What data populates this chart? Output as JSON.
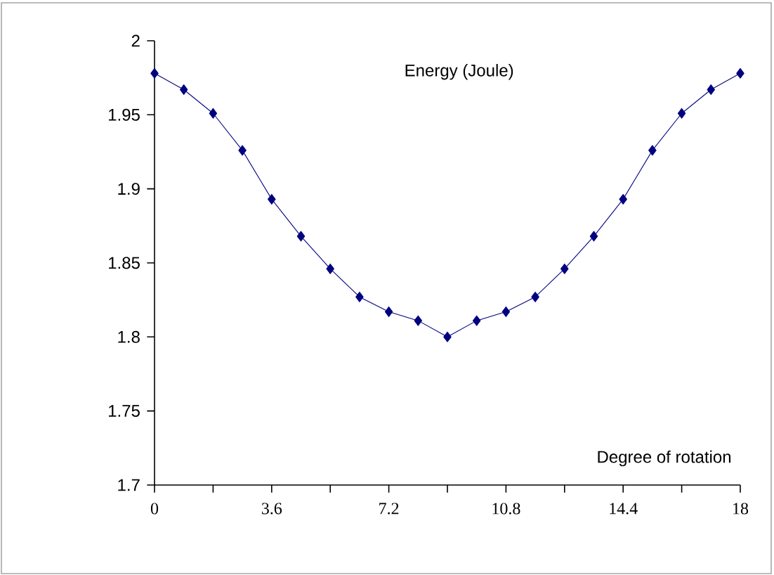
{
  "chart_data": {
    "type": "line",
    "title": "Energy (Joule)",
    "xlabel": "Degree of rotation",
    "x": [
      0,
      0.9,
      1.8,
      2.7,
      3.6,
      4.5,
      5.4,
      6.3,
      7.2,
      8.1,
      9,
      9.9,
      10.8,
      11.7,
      12.6,
      13.5,
      14.4,
      15.3,
      16.2,
      17.1,
      18
    ],
    "series": [
      {
        "color": "#000080",
        "values": [
          1.978,
          1.967,
          1.951,
          1.926,
          1.893,
          1.868,
          1.846,
          1.827,
          1.817,
          1.811,
          1.8,
          1.811,
          1.817,
          1.827,
          1.846,
          1.868,
          1.893,
          1.926,
          1.951,
          1.967,
          1.978
        ]
      }
    ],
    "xlim": [
      0,
      18
    ],
    "ylim": [
      1.7,
      2
    ],
    "xticks": [
      0,
      {
        "value": 1.8,
        "label": null
      },
      3.6,
      {
        "value": 5.4,
        "label": null
      },
      7.2,
      {
        "value": 9,
        "label": null
      },
      10.8,
      {
        "value": 12.6,
        "label": null
      },
      14.4,
      {
        "value": 16.2,
        "label": null
      },
      18
    ],
    "yticks": [
      1.7,
      1.75,
      1.8,
      1.85,
      1.9,
      1.95,
      2
    ],
    "marker": "diamond",
    "line_style": "solid"
  }
}
